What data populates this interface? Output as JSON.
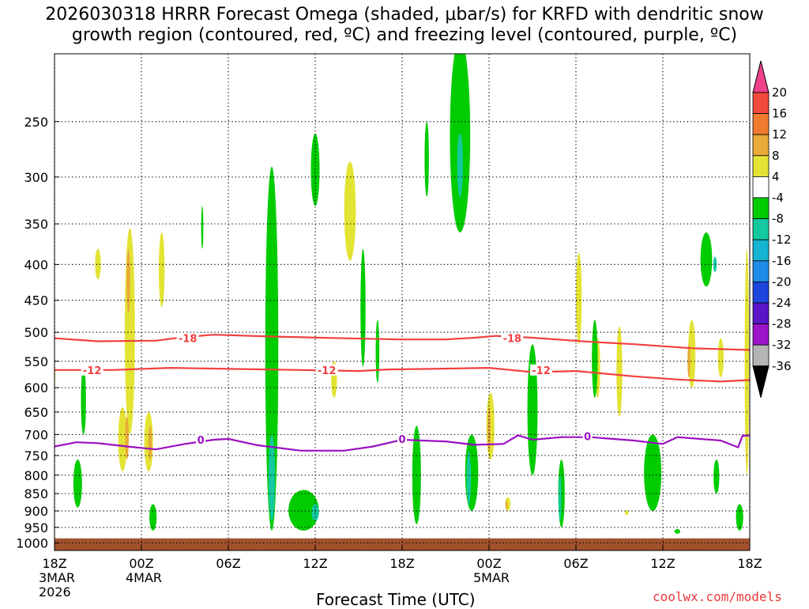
{
  "title": {
    "line1": "2026030318 HRRR Forecast Omega (shaded, μbar/s) for KRFD with dendritic snow",
    "line2": "growth region (contoured, red, ºC) and freezing level (contoured, purple, ºC)"
  },
  "credit": "coolwx.com/models",
  "chart_data": {
    "type": "heatmap",
    "xlabel": "Forecast Time (UTC)",
    "x_ticks": [
      {
        "h": 0,
        "label": "18Z",
        "sub": [
          "3MAR",
          "2026"
        ]
      },
      {
        "h": 6,
        "label": "00Z",
        "sub": [
          "4MAR"
        ]
      },
      {
        "h": 12,
        "label": "06Z",
        "sub": []
      },
      {
        "h": 18,
        "label": "12Z",
        "sub": []
      },
      {
        "h": 24,
        "label": "18Z",
        "sub": []
      },
      {
        "h": 30,
        "label": "00Z",
        "sub": [
          "5MAR"
        ]
      },
      {
        "h": 36,
        "label": "06Z",
        "sub": []
      },
      {
        "h": 42,
        "label": "12Z",
        "sub": []
      },
      {
        "h": 48,
        "label": "18Z",
        "sub": []
      }
    ],
    "xlim": [
      0,
      48
    ],
    "y_ticks": [
      250,
      300,
      350,
      400,
      450,
      500,
      550,
      600,
      650,
      700,
      750,
      800,
      850,
      900,
      950,
      1000
    ],
    "ylim": [
      1025,
      200
    ],
    "y_scale": "log",
    "grid": true,
    "colorbar": {
      "labels": [
        "20",
        "16",
        "12",
        "8",
        "4",
        "-4",
        "-8",
        "-12",
        "-16",
        "-20",
        "-24",
        "-28",
        "-32",
        "-36"
      ],
      "colors": [
        "#f0408a",
        "#f24a3c",
        "#f07c30",
        "#e9aa38",
        "#e3e333",
        "#ffffff",
        "#00cc00",
        "#14c9a0",
        "#14b4d2",
        "#1e8ce6",
        "#1e46dc",
        "#5a14c8",
        "#9a14c8",
        "#b4b4b4",
        "#000000"
      ]
    },
    "contours": [
      {
        "name": "-18",
        "color": "#f04040",
        "points": [
          [
            0,
            510
          ],
          [
            3,
            515
          ],
          [
            7,
            514
          ],
          [
            9,
            508
          ],
          [
            11,
            504
          ],
          [
            15,
            507
          ],
          [
            20,
            510
          ],
          [
            24,
            512
          ],
          [
            27,
            512
          ],
          [
            29,
            509
          ],
          [
            30.5,
            506
          ],
          [
            33,
            509
          ],
          [
            37,
            516
          ],
          [
            40,
            520
          ],
          [
            44,
            527
          ],
          [
            48,
            530
          ]
        ]
      },
      {
        "name": "-12",
        "color": "#f04040",
        "points": [
          [
            0,
            566
          ],
          [
            4,
            566
          ],
          [
            8,
            562
          ],
          [
            12,
            564
          ],
          [
            17,
            566
          ],
          [
            21,
            568
          ],
          [
            23,
            565
          ],
          [
            26,
            564
          ],
          [
            30,
            562
          ],
          [
            33,
            570
          ],
          [
            36,
            568
          ],
          [
            40,
            578
          ],
          [
            43,
            584
          ],
          [
            46,
            588
          ],
          [
            48,
            585
          ]
        ]
      },
      {
        "name": "0",
        "color": "#9a10c0",
        "points": [
          [
            0,
            728
          ],
          [
            1.5,
            718
          ],
          [
            3,
            720
          ],
          [
            5,
            728
          ],
          [
            7,
            735
          ],
          [
            9,
            722
          ],
          [
            11,
            712
          ],
          [
            12,
            710
          ],
          [
            14,
            725
          ],
          [
            17,
            738
          ],
          [
            20,
            738
          ],
          [
            22,
            728
          ],
          [
            24,
            712
          ],
          [
            27,
            716
          ],
          [
            29,
            724
          ],
          [
            31,
            722
          ],
          [
            32,
            702
          ],
          [
            33,
            712
          ],
          [
            35,
            706
          ],
          [
            37,
            706
          ],
          [
            40,
            714
          ],
          [
            42,
            722
          ],
          [
            43,
            706
          ],
          [
            46,
            714
          ],
          [
            47.2,
            730
          ],
          [
            47.5,
            703
          ],
          [
            48,
            702
          ]
        ]
      }
    ],
    "contour_labels": [
      {
        "text": "-18",
        "h": 9.2,
        "p": 510,
        "color": "#f04040"
      },
      {
        "text": "-18",
        "h": 31.6,
        "p": 510,
        "color": "#f04040"
      },
      {
        "text": "-12",
        "h": 2.6,
        "p": 566,
        "color": "#f04040"
      },
      {
        "text": "-12",
        "h": 18.8,
        "p": 566,
        "color": "#f04040"
      },
      {
        "text": "-12",
        "h": 33.6,
        "p": 566,
        "color": "#f04040"
      },
      {
        "text": "0",
        "h": 10.1,
        "p": 712,
        "color": "#9a10c0"
      },
      {
        "text": "0",
        "h": 24.0,
        "p": 710,
        "color": "#9a10c0"
      },
      {
        "text": "0",
        "h": 36.8,
        "p": 704,
        "color": "#9a10c0"
      }
    ],
    "omega_features": [
      {
        "level": 4,
        "h": 20.4,
        "p0": 285,
        "p1": 395,
        "w": 0.8
      },
      {
        "level": 4,
        "h": 5.2,
        "p0": 355,
        "p1": 700,
        "w": 0.7
      },
      {
        "level": 4,
        "h": 3.0,
        "p0": 380,
        "p1": 420,
        "w": 0.4
      },
      {
        "level": 4,
        "h": 4.7,
        "p0": 640,
        "p1": 790,
        "w": 0.6
      },
      {
        "level": 8,
        "h": 5.1,
        "p0": 380,
        "p1": 470,
        "w": 0.25
      },
      {
        "level": 8,
        "h": 5.0,
        "p0": 660,
        "p1": 760,
        "w": 0.25
      },
      {
        "level": 4,
        "h": 6.5,
        "p0": 650,
        "p1": 790,
        "w": 0.6
      },
      {
        "level": 8,
        "h": 6.6,
        "p0": 680,
        "p1": 760,
        "w": 0.25
      },
      {
        "level": 4,
        "h": 7.4,
        "p0": 360,
        "p1": 460,
        "w": 0.4
      },
      {
        "level": 4,
        "h": -0.1,
        "p0": 540,
        "p1": 610,
        "w": 0.3
      },
      {
        "level": 4,
        "h": 19.3,
        "p0": 550,
        "p1": 620,
        "w": 0.4
      },
      {
        "level": 4,
        "h": 30.1,
        "p0": 610,
        "p1": 760,
        "w": 0.55
      },
      {
        "level": 8,
        "h": 30.0,
        "p0": 640,
        "p1": 740,
        "w": 0.2
      },
      {
        "level": 4,
        "h": 31.3,
        "p0": 860,
        "p1": 900,
        "w": 0.35
      },
      {
        "level": 8,
        "h": 31.2,
        "p0": 870,
        "p1": 895,
        "w": 0.15
      },
      {
        "level": 4,
        "h": 36.2,
        "p0": 385,
        "p1": 520,
        "w": 0.4
      },
      {
        "level": 4,
        "h": 37.5,
        "p0": 510,
        "p1": 620,
        "w": 0.35
      },
      {
        "level": 4,
        "h": 39.0,
        "p0": 490,
        "p1": 660,
        "w": 0.4
      },
      {
        "level": 4,
        "h": 44.0,
        "p0": 480,
        "p1": 600,
        "w": 0.5
      },
      {
        "level": 8,
        "h": 43.8,
        "p0": 520,
        "p1": 580,
        "w": 0.2
      },
      {
        "level": 4,
        "h": 46.0,
        "p0": 510,
        "p1": 580,
        "w": 0.4
      },
      {
        "level": 4,
        "h": 47.8,
        "p0": 380,
        "p1": 800,
        "w": 0.3
      },
      {
        "level": 4,
        "h": 39.5,
        "p0": 900,
        "p1": 910,
        "w": 0.25
      },
      {
        "level": -4,
        "h": 18.0,
        "p0": 260,
        "p1": 330,
        "w": 0.6
      },
      {
        "level": -4,
        "h": 15.0,
        "p0": 290,
        "p1": 960,
        "w": 0.9
      },
      {
        "level": -8,
        "h": 15.0,
        "p0": 700,
        "p1": 930,
        "w": 0.45
      },
      {
        "level": -4,
        "h": 21.3,
        "p0": 380,
        "p1": 560,
        "w": 0.35
      },
      {
        "level": -4,
        "h": 25.7,
        "p0": 250,
        "p1": 320,
        "w": 0.3
      },
      {
        "level": -4,
        "h": 28.0,
        "p0": 190,
        "p1": 360,
        "w": 1.4
      },
      {
        "level": -8,
        "h": 28.0,
        "p0": 260,
        "p1": 320,
        "w": 0.4
      },
      {
        "level": -4,
        "h": 33.0,
        "p0": 520,
        "p1": 800,
        "w": 0.7
      },
      {
        "level": -4,
        "h": 37.3,
        "p0": 480,
        "p1": 620,
        "w": 0.4
      },
      {
        "level": -4,
        "h": 41.3,
        "p0": 700,
        "p1": 900,
        "w": 1.2
      },
      {
        "level": -4,
        "h": 45.0,
        "p0": 360,
        "p1": 430,
        "w": 0.8
      },
      {
        "level": -8,
        "h": 45.6,
        "p0": 390,
        "p1": 410,
        "w": 0.25
      },
      {
        "level": -4,
        "h": 45.7,
        "p0": 760,
        "p1": 850,
        "w": 0.4
      },
      {
        "level": -4,
        "h": 28.8,
        "p0": 700,
        "p1": 900,
        "w": 0.9
      },
      {
        "level": -8,
        "h": 28.6,
        "p0": 740,
        "p1": 880,
        "w": 0.3
      },
      {
        "level": -4,
        "h": 25.0,
        "p0": 680,
        "p1": 940,
        "w": 0.6
      },
      {
        "level": -4,
        "h": 35.0,
        "p0": 760,
        "p1": 950,
        "w": 0.45
      },
      {
        "level": -8,
        "h": 34.9,
        "p0": 800,
        "p1": 930,
        "w": 0.2
      },
      {
        "level": -4,
        "h": 17.2,
        "p0": 840,
        "p1": 960,
        "w": 2.1
      },
      {
        "level": -8,
        "h": 18.0,
        "p0": 880,
        "p1": 930,
        "w": 0.5
      },
      {
        "level": -4,
        "h": 2.0,
        "p0": 560,
        "p1": 700,
        "w": 0.35
      },
      {
        "level": -4,
        "h": 1.6,
        "p0": 760,
        "p1": 890,
        "w": 0.6
      },
      {
        "level": -4,
        "h": 6.8,
        "p0": 880,
        "p1": 960,
        "w": 0.5
      },
      {
        "level": -4,
        "h": 47.3,
        "p0": 880,
        "p1": 960,
        "w": 0.5
      },
      {
        "level": -4,
        "h": 43.0,
        "p0": 960,
        "p1": 965,
        "w": 0.4
      },
      {
        "level": -4,
        "h": 22.3,
        "p0": 480,
        "p1": 590,
        "w": 0.25
      },
      {
        "level": -4,
        "h": 10.2,
        "p0": 330,
        "p1": 380,
        "w": 0.15
      }
    ]
  }
}
